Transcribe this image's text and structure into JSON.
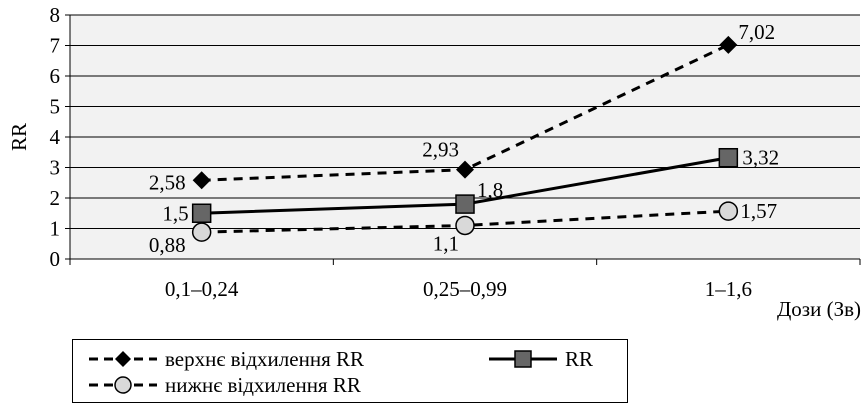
{
  "chart_data": {
    "type": "line",
    "xlabel": "Дози (Зв)",
    "ylabel": "RR",
    "ylim": [
      0,
      8
    ],
    "y_ticks": [
      "0",
      "1",
      "2",
      "3",
      "4",
      "5",
      "6",
      "7",
      "8"
    ],
    "categories": [
      "0,1–0,24",
      "0,25–0,99",
      "1–1,6"
    ],
    "grid": "horizontal",
    "legend_position": "bottom",
    "series": [
      {
        "key": "upper",
        "name": "верхнє відхилення RR",
        "values": [
          2.58,
          2.93,
          7.02
        ],
        "labels": [
          "2,58",
          "2,93",
          "7,02"
        ],
        "style": "dashed",
        "marker": "diamond",
        "color": "#000000"
      },
      {
        "key": "rr",
        "name": "RR",
        "values": [
          1.5,
          1.8,
          3.32
        ],
        "labels": [
          "1,5",
          "1,8",
          "3,32"
        ],
        "style": "solid",
        "marker": "square",
        "color": "#000000",
        "marker_color": "#666666"
      },
      {
        "key": "lower",
        "name": "нижнє відхилення RR",
        "values": [
          0.88,
          1.1,
          1.57
        ],
        "labels": [
          "0,88",
          "1,1",
          "1,57"
        ],
        "style": "dashed",
        "marker": "circle",
        "color": "#000000",
        "marker_color": "#d9d9d9"
      }
    ]
  },
  "legend": {
    "upper_label": "верхнє відхилення RR",
    "lower_label": "нижнє відхилення RR",
    "rr_label": "RR"
  },
  "colors": {
    "plot_background": "#f2f2f2",
    "gridline": "#000000"
  }
}
